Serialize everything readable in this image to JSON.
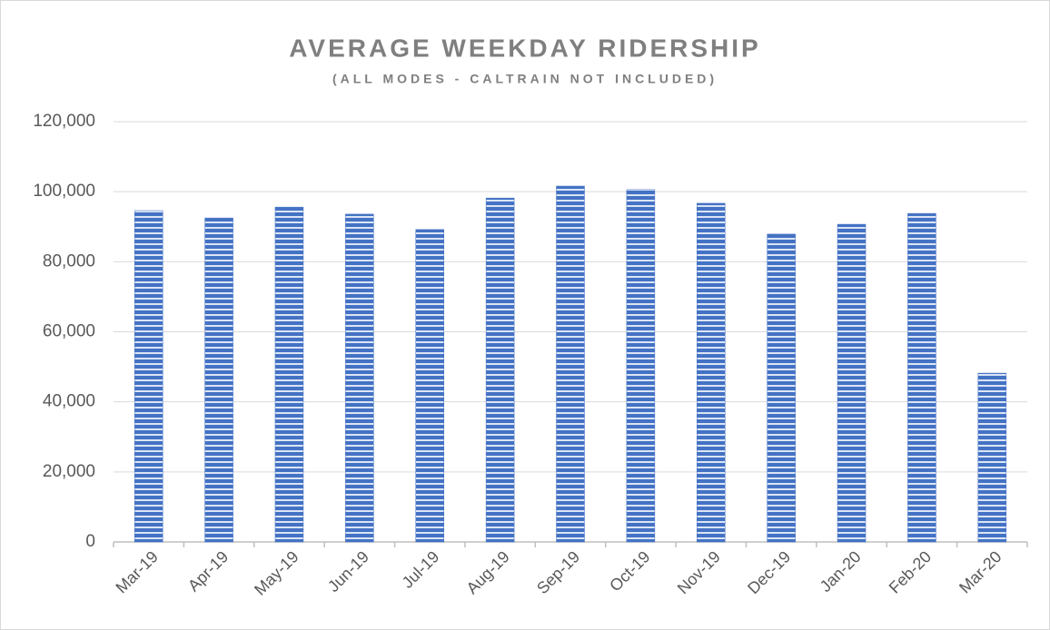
{
  "chart_data": {
    "type": "bar",
    "title": "AVERAGE WEEKDAY RIDERSHIP",
    "subtitle": "(ALL MODES - CALTRAIN NOT INCLUDED)",
    "categories": [
      "Mar-19",
      "Apr-19",
      "May-19",
      "Jun-19",
      "Jul-19",
      "Aug-19",
      "Sep-19",
      "Oct-19",
      "Nov-19",
      "Dec-19",
      "Jan-20",
      "Feb-20",
      "Mar-20"
    ],
    "values": [
      94600,
      92500,
      95600,
      93600,
      89200,
      98200,
      101600,
      100600,
      96700,
      87900,
      90700,
      93800,
      48200
    ],
    "color": "#4472c4",
    "ylim": [
      0,
      120000
    ],
    "yticks": [
      0,
      {
        "value": 20000,
        "label": "20,000"
      },
      {
        "value": 40000,
        "label": "40,000"
      },
      {
        "value": 60000,
        "label": "60,000"
      },
      {
        "value": 80000,
        "label": "80,000"
      },
      {
        "value": 100000,
        "label": "100,000"
      },
      {
        "value": 120000,
        "label": "120,000"
      }
    ],
    "grid": true
  }
}
